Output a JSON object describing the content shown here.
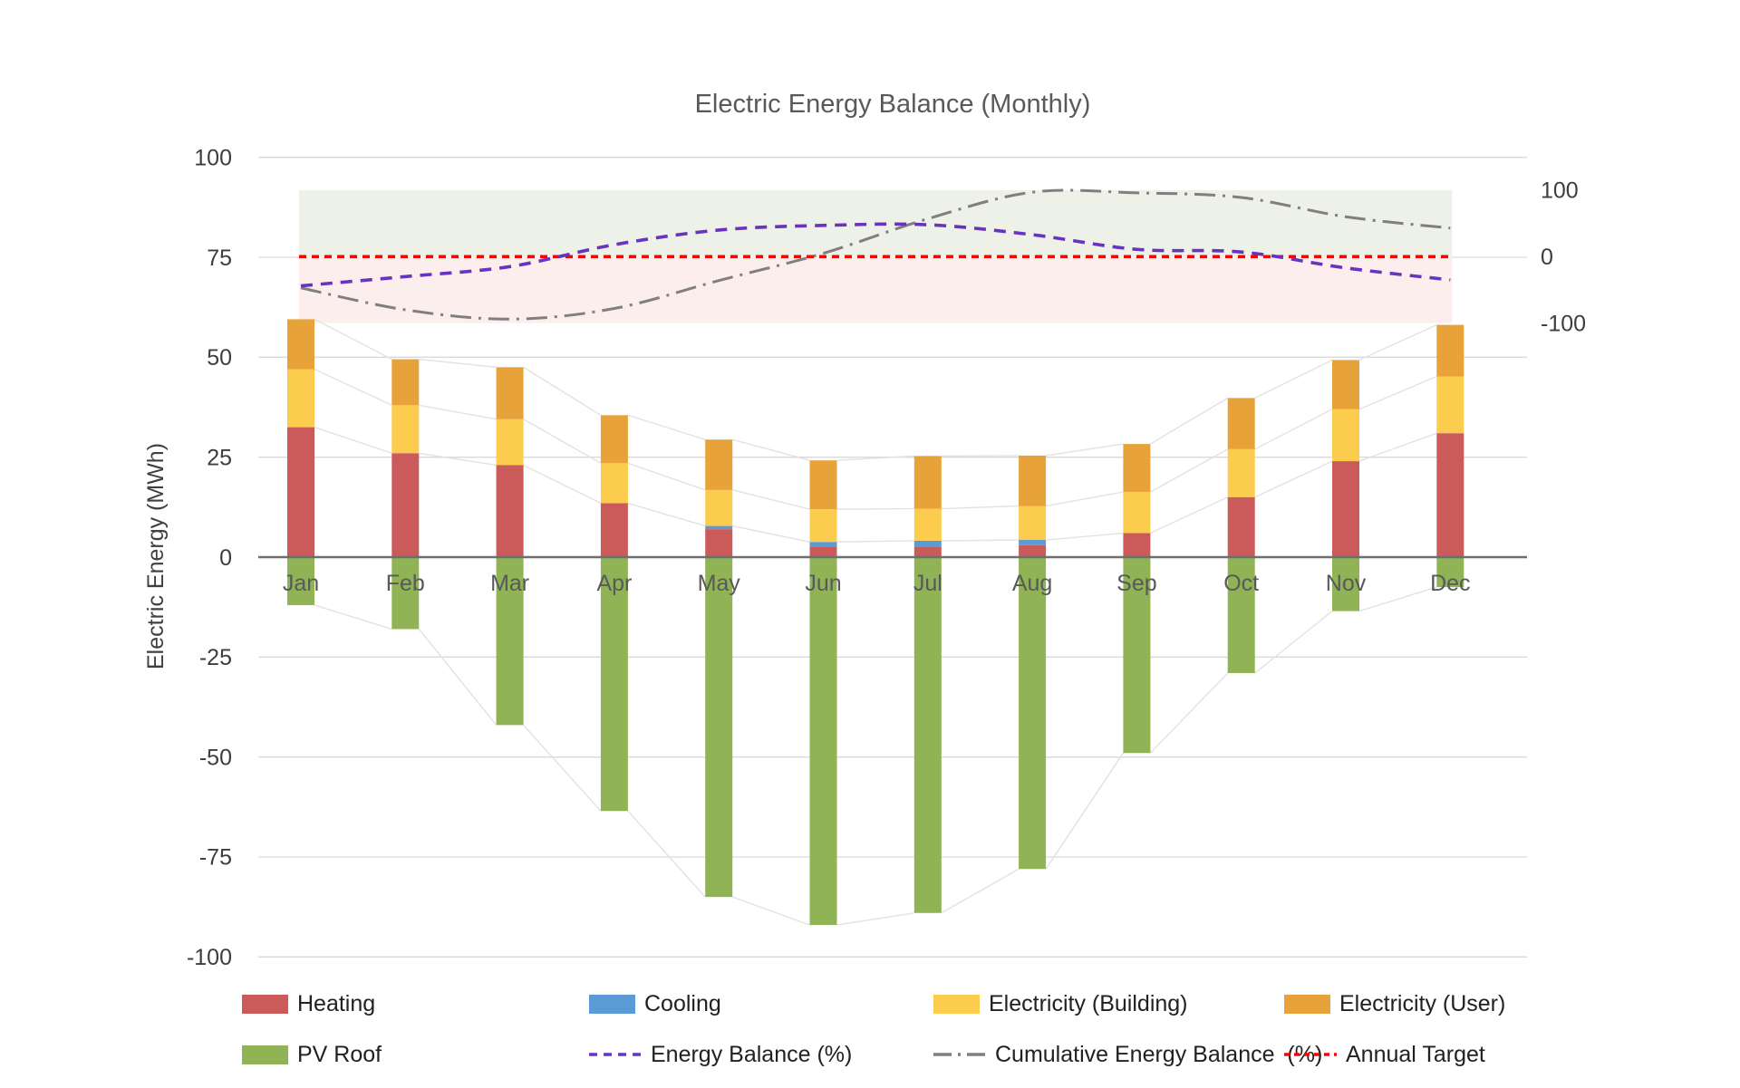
{
  "title": "Electric Energy Balance (Monthly)",
  "y_axis_label": "Electric  Energy (MWh)",
  "colors": {
    "heating": "#CB5B5B",
    "cooling": "#5B9BD5",
    "electricity_building": "#FBCC4D",
    "electricity_user": "#E7A33A",
    "pv_roof": "#8FB355",
    "energy_balance_line": "#6733BF",
    "cumulative_line": "#7F7F7F",
    "annual_target_line": "#FF0000",
    "band_positive": "#EEF1E8",
    "band_negative": "#FCEEED",
    "gridline": "#D9D9D9",
    "zero_line": "#6E6E6E",
    "connector": "#E2E2E2"
  },
  "chart_data": {
    "type": "bar",
    "subtype": "stacked-bar-with-lines",
    "title": "Electric Energy Balance (Monthly)",
    "xlabel": "",
    "ylabel": "Electric  Energy (MWh)",
    "left_axis": {
      "label": "Electric  Energy (MWh)",
      "unit": "MWh",
      "ylim": [
        -100,
        100
      ],
      "ticks": [
        100,
        75,
        50,
        25,
        0,
        -25,
        -50,
        -75,
        -100
      ]
    },
    "right_axis": {
      "unit": "%",
      "ticks": [
        100,
        0,
        -100
      ]
    },
    "grid": "horizontal",
    "legend_position": "bottom",
    "categories": [
      "Jan",
      "Feb",
      "Mar",
      "Apr",
      "May",
      "Jun",
      "Jul",
      "Aug",
      "Sep",
      "Oct",
      "Nov",
      "Dec"
    ],
    "series": [
      {
        "name": "Heating",
        "type": "bar",
        "stack": "consumption",
        "axis": "left",
        "values": [
          32.5,
          26,
          23,
          13.5,
          7,
          2.5,
          2.5,
          3,
          6,
          15,
          24,
          31
        ]
      },
      {
        "name": "Cooling",
        "type": "bar",
        "stack": "consumption",
        "axis": "left",
        "values": [
          0,
          0,
          0,
          0,
          0.8,
          1.3,
          1.6,
          1.3,
          0,
          0,
          0,
          0
        ]
      },
      {
        "name": "Electricity (Building)",
        "type": "bar",
        "stack": "consumption",
        "axis": "left",
        "values": [
          14.5,
          12,
          11.5,
          10,
          9,
          8.2,
          8,
          8.5,
          10.3,
          12,
          13,
          14.2
        ]
      },
      {
        "name": "Electricity (User)",
        "type": "bar",
        "stack": "consumption",
        "axis": "left",
        "values": [
          12.5,
          11.5,
          13,
          12,
          12.6,
          12.2,
          13.2,
          12.6,
          12,
          12.8,
          12.3,
          12.9
        ]
      },
      {
        "name": "PV Roof",
        "type": "bar",
        "stack": "generation",
        "axis": "left",
        "values": [
          -12,
          -18,
          -42,
          -63.5,
          -85,
          -92,
          -89,
          -78,
          -49,
          -29,
          -13.5,
          -7.5
        ]
      },
      {
        "name": "Energy Balance (%)",
        "type": "line",
        "style": "dashed",
        "axis": "right",
        "values": [
          -44,
          -30,
          -15,
          18,
          40,
          47,
          48,
          33,
          11,
          7,
          -17,
          -35
        ]
      },
      {
        "name": "Cumulative Energy Balance  (%)",
        "type": "line",
        "style": "dash-dot",
        "axis": "right",
        "values": [
          -47,
          -80,
          -94,
          -78,
          -36,
          5,
          57,
          97,
          96,
          89,
          60,
          43
        ]
      },
      {
        "name": "Annual Target",
        "type": "line",
        "style": "dashed",
        "axis": "right",
        "constant": 0,
        "values": [
          0,
          0,
          0,
          0,
          0,
          0,
          0,
          0,
          0,
          0,
          0,
          0
        ]
      }
    ],
    "bands": [
      {
        "name": "positive-zone",
        "axis": "right",
        "from": 0,
        "to": 100
      },
      {
        "name": "negative-zone",
        "axis": "right",
        "from": -100,
        "to": 0
      }
    ]
  },
  "legend": {
    "rows": [
      [
        {
          "label": "Heating",
          "swatch": "bar",
          "color_key": "heating"
        },
        {
          "label": "Cooling",
          "swatch": "bar",
          "color_key": "cooling"
        },
        {
          "label": "Electricity (Building)",
          "swatch": "bar",
          "color_key": "electricity_building"
        },
        {
          "label": "Electricity (User)",
          "swatch": "bar",
          "color_key": "electricity_user"
        }
      ],
      [
        {
          "label": "PV Roof",
          "swatch": "bar",
          "color_key": "pv_roof"
        },
        {
          "label": "Energy Balance (%)",
          "swatch": "dashed",
          "color_key": "energy_balance_line"
        },
        {
          "label": "Cumulative Energy Balance  (%)",
          "swatch": "dash-dot",
          "color_key": "cumulative_line"
        },
        {
          "label": "Annual Target",
          "swatch": "short-dash",
          "color_key": "annual_target_line"
        }
      ]
    ]
  }
}
